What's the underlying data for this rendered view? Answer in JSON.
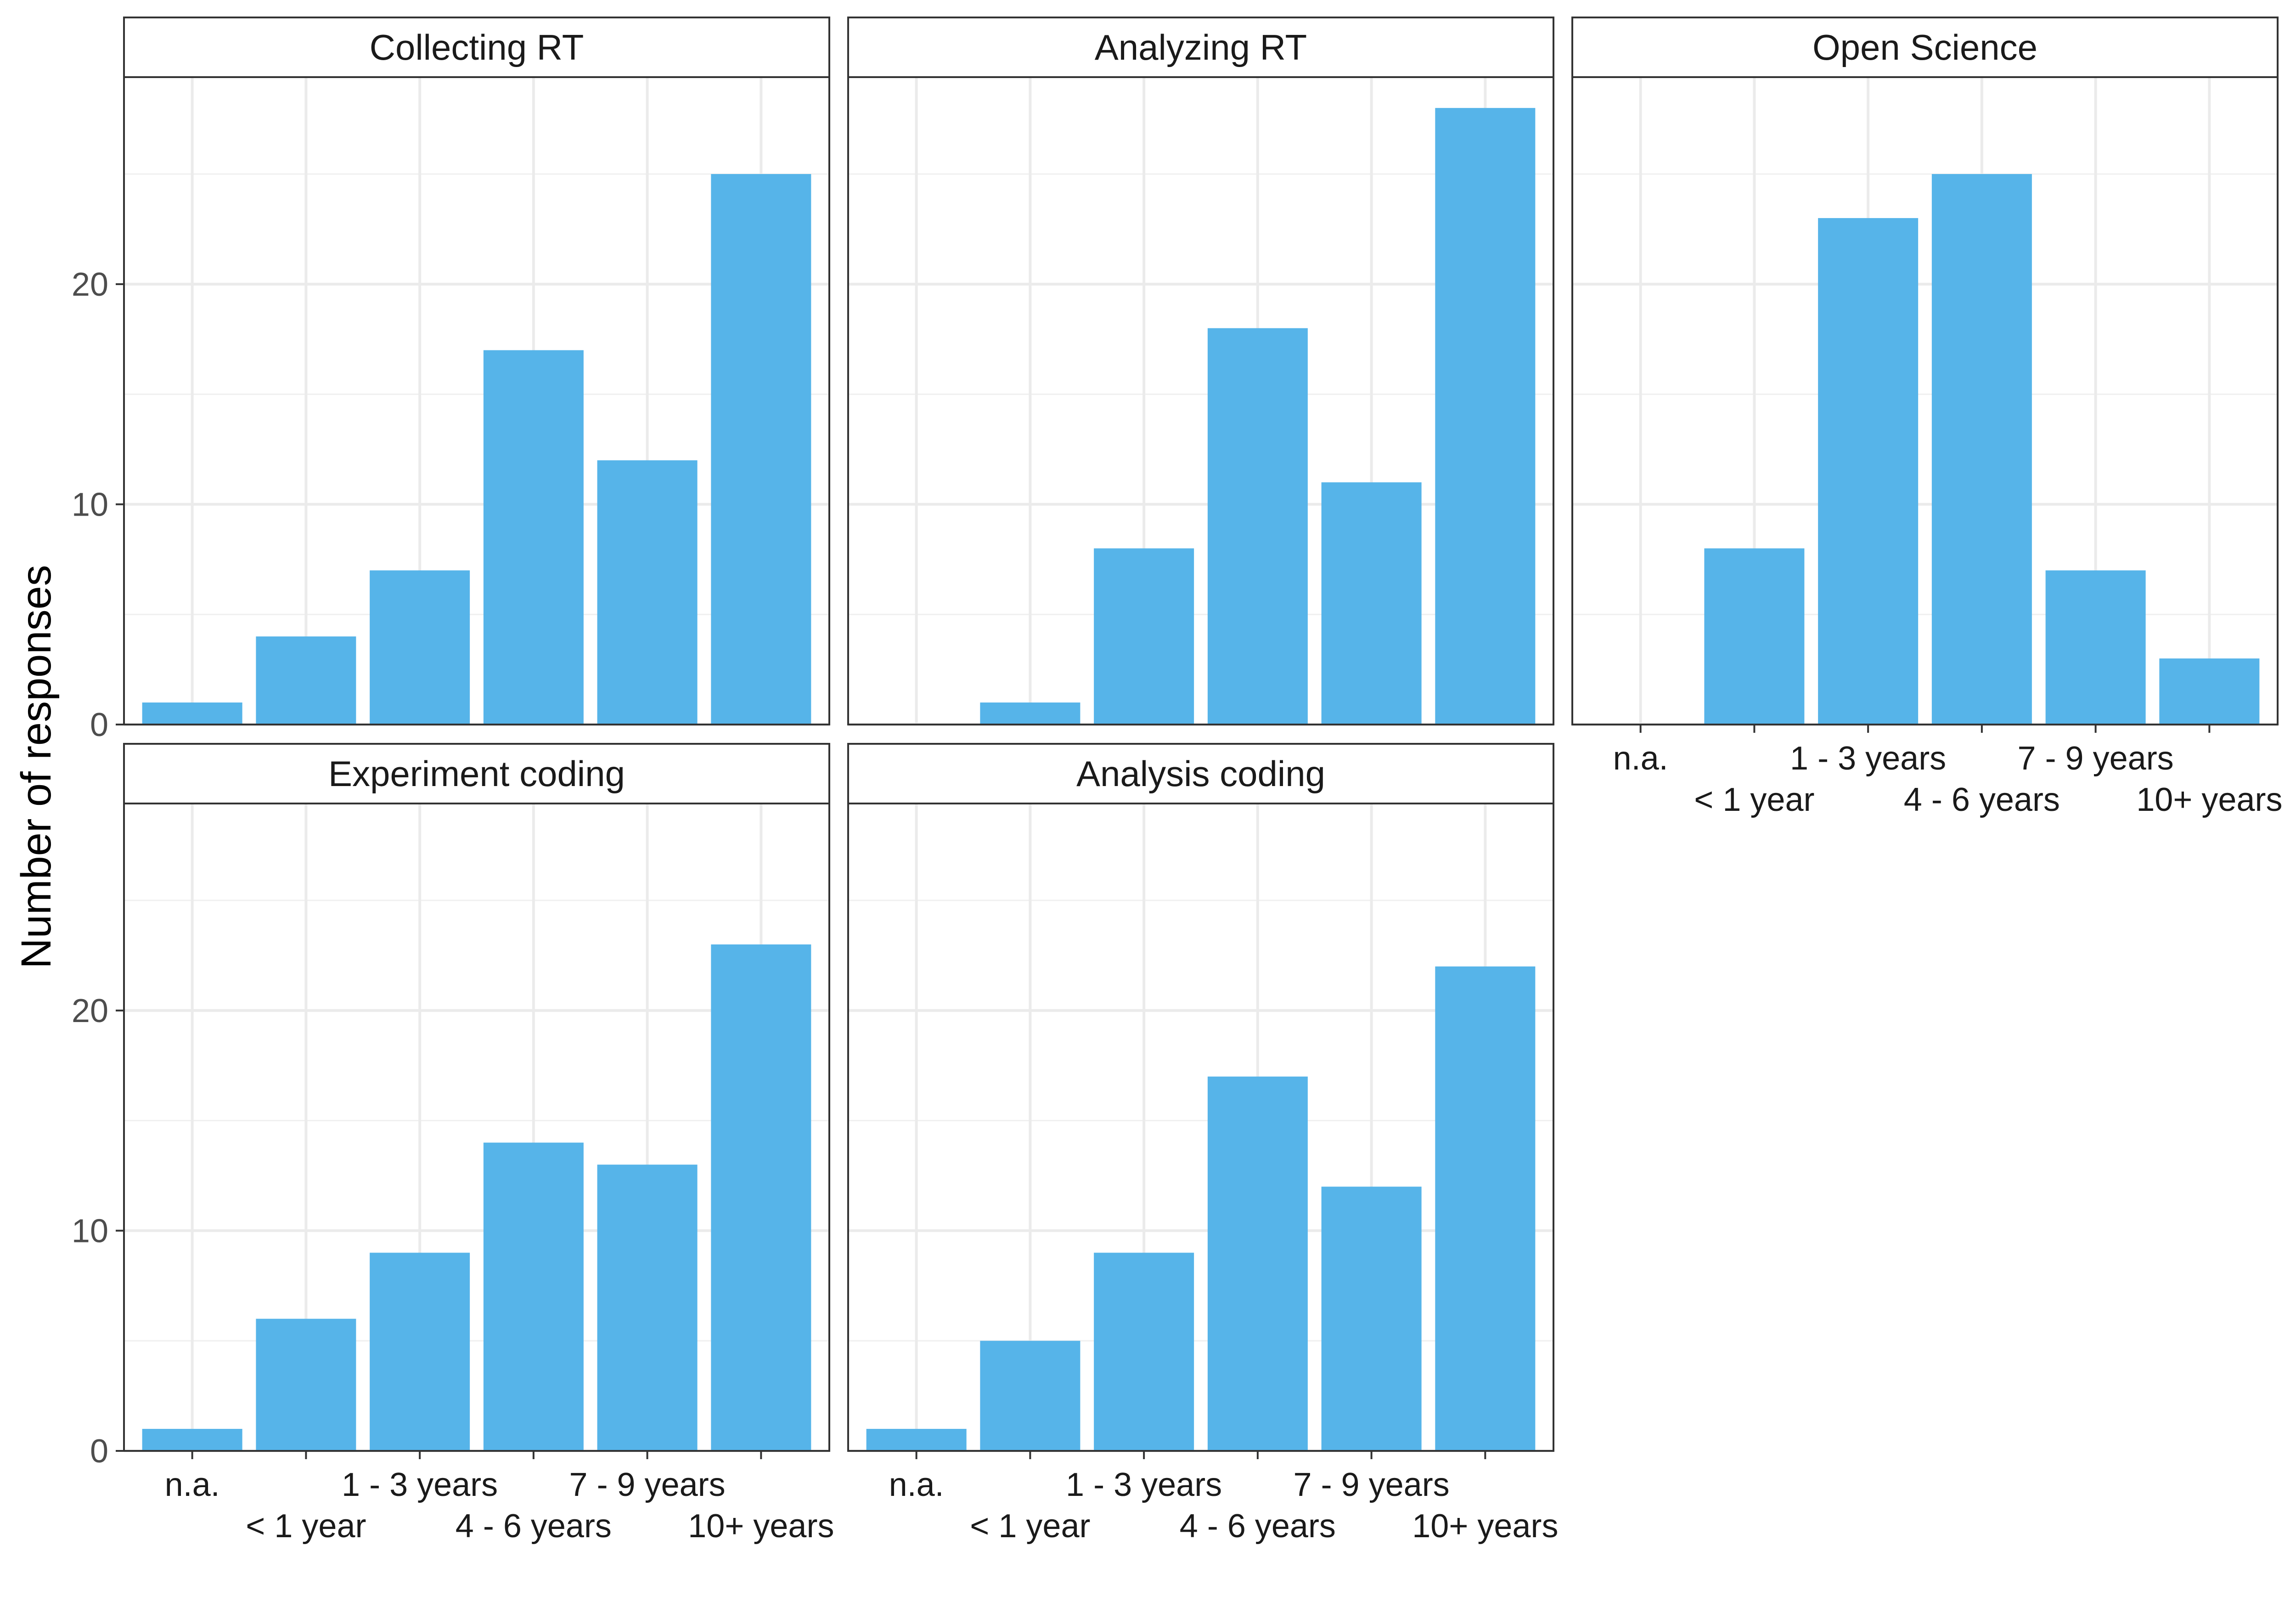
{
  "chart_data": {
    "type": "bar",
    "ylabel": "Number of responses",
    "xlabel": "",
    "ylim": [
      0,
      29.4
    ],
    "yticks": [
      0,
      10,
      20
    ],
    "grid": true,
    "bar_color": "#56B4E9",
    "categories": [
      "n.a.",
      "< 1 year",
      "1 - 3 years",
      "4 - 6 years",
      "7 - 9 years",
      "10+ years"
    ],
    "panels": [
      {
        "title": "Collecting RT",
        "values": [
          1,
          4,
          7,
          17,
          12,
          25
        ]
      },
      {
        "title": "Analyzing RT",
        "values": [
          0,
          1,
          8,
          18,
          11,
          28
        ]
      },
      {
        "title": "Open Science",
        "values": [
          0,
          8,
          23,
          25,
          7,
          3
        ]
      },
      {
        "title": "Experiment coding",
        "values": [
          1,
          6,
          9,
          14,
          13,
          23
        ]
      },
      {
        "title": "Analysis coding",
        "values": [
          1,
          5,
          9,
          17,
          12,
          22
        ]
      }
    ]
  }
}
